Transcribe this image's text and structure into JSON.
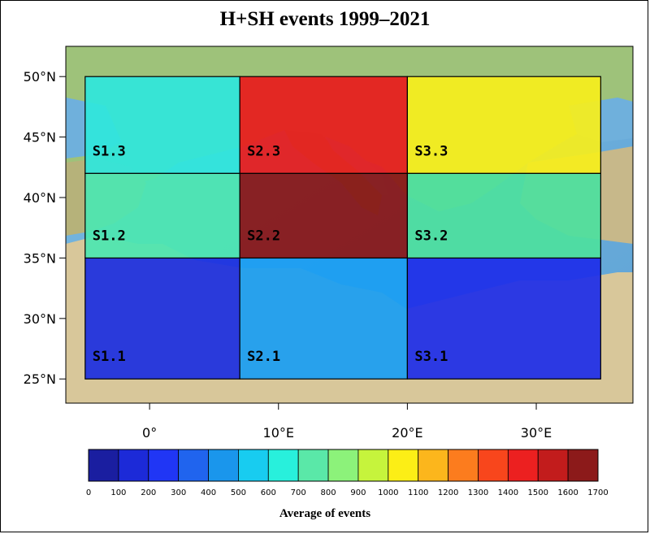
{
  "title": "H+SH events 1999–2021",
  "axes": {
    "lat_labels": [
      {
        "value": 25,
        "label": "25°N"
      },
      {
        "value": 30,
        "label": "30°N"
      },
      {
        "value": 35,
        "label": "35°N"
      },
      {
        "value": 40,
        "label": "40°N"
      },
      {
        "value": 45,
        "label": "45°N"
      },
      {
        "value": 50,
        "label": "50°N"
      }
    ],
    "lon_labels": [
      {
        "value": 0,
        "label": "0°"
      },
      {
        "value": 10,
        "label": "10°E"
      },
      {
        "value": 20,
        "label": "20°E"
      },
      {
        "value": 30,
        "label": "30°E"
      }
    ],
    "lon_range": [
      -6.5,
      37.5
    ],
    "lat_range": [
      23,
      52.5
    ]
  },
  "regions": [
    {
      "id": "S1.1",
      "lon": [
        -5,
        7
      ],
      "lat": [
        25,
        35
      ],
      "color": "#1c2fe0"
    },
    {
      "id": "S1.2",
      "lon": [
        -5,
        7
      ],
      "lat": [
        35,
        42
      ],
      "color": "#4ce6b0"
    },
    {
      "id": "S1.3",
      "lon": [
        -5,
        7
      ],
      "lat": [
        42,
        50
      ],
      "color": "#2fe6dc"
    },
    {
      "id": "S2.1",
      "lon": [
        7,
        20
      ],
      "lat": [
        25,
        35
      ],
      "color": "#1a9ef2"
    },
    {
      "id": "S2.2",
      "lon": [
        7,
        20
      ],
      "lat": [
        35,
        42
      ],
      "color": "#8a1515"
    },
    {
      "id": "S2.3",
      "lon": [
        7,
        20
      ],
      "lat": [
        42,
        50
      ],
      "color": "#e81c1c"
    },
    {
      "id": "S3.1",
      "lon": [
        20,
        35
      ],
      "lat": [
        25,
        35
      ],
      "color": "#1e2ee8"
    },
    {
      "id": "S3.2",
      "lon": [
        20,
        35
      ],
      "lat": [
        35,
        42
      ],
      "color": "#4ee09e"
    },
    {
      "id": "S3.3",
      "lon": [
        20,
        35
      ],
      "lat": [
        42,
        50
      ],
      "color": "#f6ee1c"
    }
  ],
  "colorbar": {
    "title": "Average of events",
    "ticks": [
      "0",
      "100",
      "200",
      "300",
      "400",
      "500",
      "600",
      "700",
      "800",
      "900",
      "1000",
      "1100",
      "1200",
      "1300",
      "1400",
      "1500",
      "1600",
      "1700"
    ],
    "colors": [
      "#1a1ea0",
      "#1c2ad8",
      "#2036f5",
      "#2064ee",
      "#1a96ec",
      "#18ccf0",
      "#28f0dc",
      "#5ae8a8",
      "#8cf27a",
      "#c6f43c",
      "#fcee16",
      "#fcb61c",
      "#fc7c1e",
      "#f8461c",
      "#ec2020",
      "#c21c1c",
      "#8c1a1a"
    ]
  }
}
